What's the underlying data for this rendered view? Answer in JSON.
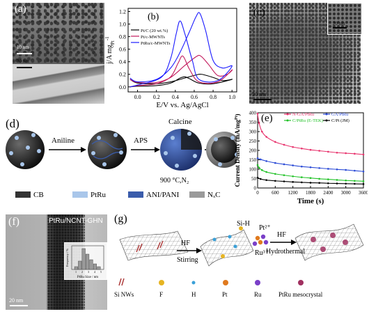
{
  "figure": {
    "panel_labels": [
      "(a)",
      "(b)",
      "(c)",
      "(d)",
      "(e)",
      "(f)",
      "(g)"
    ]
  },
  "panel_a": {
    "scale_top": "10 nm",
    "scale_bottom": "30 nm"
  },
  "panel_c": {
    "scale_main": "20 nm",
    "scale_inset": "20 nm"
  },
  "panel_d": {
    "steps": [
      "Aniline",
      "APS",
      "Calcine"
    ],
    "calcine_condition": "900 °C,N₂",
    "legend": [
      {
        "label": "CB",
        "color": "#333333"
      },
      {
        "label": "PtRu",
        "color": "#a9c6ea"
      },
      {
        "label": "ANI/PANI",
        "color": "#3a5cab"
      },
      {
        "label": "NₓC",
        "color": "#9a9a9a"
      }
    ]
  },
  "panel_f": {
    "title": "PtRu/NCNT-GHN",
    "scale": "20 nm",
    "inset_xlabel": "PtRu Size / nm",
    "inset_ylabel": "Frequency / %"
  },
  "panel_g": {
    "steps": [
      "HF",
      "Stirring",
      "Si-H",
      "Pt²⁺",
      "Ru³⁺",
      "HF",
      "Hydrothermal"
    ],
    "legend": [
      "Si NWs",
      "F",
      "H",
      "Pt",
      "Ru",
      "PtRu mesocrystal"
    ]
  },
  "chart_data": [
    {
      "type": "line",
      "panel": "(b)",
      "xlabel": "E/V vs. Ag/AgCl",
      "ylabel": "j/A mg",
      "ylabel_sub": "Pt",
      "ylabel_sup": "-1",
      "xlim": [
        -0.1,
        1.05
      ],
      "ylim": [
        -0.08,
        1.25
      ],
      "xticks": [
        0.0,
        0.2,
        0.4,
        0.6,
        0.8,
        1.0
      ],
      "yticks": [
        0.0,
        0.2,
        0.4,
        0.6,
        0.8,
        1.0,
        1.2
      ],
      "legend_position": "top-left",
      "series": [
        {
          "name": "Pt/C (20 wt.%)",
          "color": "#000000",
          "forward": [
            [
              -0.08,
              0.12
            ],
            [
              0.0,
              0.06
            ],
            [
              0.2,
              0.05
            ],
            [
              0.35,
              0.08
            ],
            [
              0.5,
              0.14
            ],
            [
              0.62,
              0.19
            ],
            [
              0.68,
              0.2
            ],
            [
              0.8,
              0.15
            ],
            [
              0.9,
              0.1
            ],
            [
              1.0,
              0.12
            ]
          ],
          "reverse": [
            [
              1.0,
              0.12
            ],
            [
              0.8,
              0.05
            ],
            [
              0.65,
              0.06
            ],
            [
              0.55,
              0.13
            ],
            [
              0.5,
              0.16
            ],
            [
              0.45,
              0.14
            ],
            [
              0.35,
              0.06
            ],
            [
              0.2,
              0.02
            ],
            [
              0.0,
              0.01
            ],
            [
              -0.08,
              0.0
            ]
          ]
        },
        {
          "name": "Pt/c-MWNTs",
          "color": "#c2185b",
          "forward": [
            [
              -0.08,
              0.12
            ],
            [
              0.0,
              0.07
            ],
            [
              0.2,
              0.07
            ],
            [
              0.35,
              0.15
            ],
            [
              0.5,
              0.34
            ],
            [
              0.62,
              0.48
            ],
            [
              0.67,
              0.49
            ],
            [
              0.75,
              0.36
            ],
            [
              0.85,
              0.18
            ],
            [
              0.95,
              0.2
            ],
            [
              1.0,
              0.27
            ]
          ],
          "reverse": [
            [
              1.0,
              0.27
            ],
            [
              0.85,
              0.08
            ],
            [
              0.65,
              0.08
            ],
            [
              0.55,
              0.28
            ],
            [
              0.48,
              0.49
            ],
            [
              0.43,
              0.38
            ],
            [
              0.35,
              0.16
            ],
            [
              0.2,
              0.05
            ],
            [
              0.0,
              0.02
            ],
            [
              -0.08,
              0.0
            ]
          ]
        },
        {
          "name": "PtRu/c-MWNTs",
          "color": "#1a1aff",
          "forward": [
            [
              -0.08,
              0.14
            ],
            [
              0.0,
              0.08
            ],
            [
              0.2,
              0.12
            ],
            [
              0.35,
              0.3
            ],
            [
              0.45,
              0.55
            ],
            [
              0.55,
              0.88
            ],
            [
              0.62,
              1.12
            ],
            [
              0.66,
              1.17
            ],
            [
              0.72,
              0.9
            ],
            [
              0.8,
              0.42
            ],
            [
              0.9,
              0.3
            ],
            [
              1.0,
              0.33
            ]
          ],
          "reverse": [
            [
              1.0,
              0.33
            ],
            [
              0.85,
              0.1
            ],
            [
              0.65,
              0.12
            ],
            [
              0.58,
              0.42
            ],
            [
              0.5,
              0.85
            ],
            [
              0.45,
              1.05
            ],
            [
              0.41,
              0.85
            ],
            [
              0.35,
              0.45
            ],
            [
              0.25,
              0.15
            ],
            [
              0.0,
              0.03
            ],
            [
              -0.08,
              0.0
            ]
          ]
        }
      ]
    },
    {
      "type": "line",
      "panel": "(e)",
      "xlabel": "Time (s)",
      "ylabel": "Current Density (mA/mg",
      "ylabel_sup": "Pt",
      "ylabel_end": ")",
      "xlim": [
        0,
        3600
      ],
      "ylim": [
        0,
        400
      ],
      "xticks": [
        0,
        600,
        1200,
        1800,
        2400,
        3000,
        3600
      ],
      "yticks": [
        0,
        50,
        100,
        150,
        200,
        250,
        300,
        350,
        400
      ],
      "legend_position": "top",
      "series": [
        {
          "name": "N-GA/PtRu",
          "color": "#e8336d",
          "marker": "dot",
          "points": [
            [
              0,
              395
            ],
            [
              50,
              345
            ],
            [
              150,
              300
            ],
            [
              300,
              272
            ],
            [
              600,
              245
            ],
            [
              900,
              230
            ],
            [
              1200,
              218
            ],
            [
              1500,
              210
            ],
            [
              1800,
              203
            ],
            [
              2100,
              198
            ],
            [
              2400,
              193
            ],
            [
              2700,
              188
            ],
            [
              3000,
              185
            ],
            [
              3300,
              182
            ],
            [
              3600,
              178
            ]
          ]
        },
        {
          "name": "GA/PtRu",
          "color": "#2b4bd6",
          "marker": "dot",
          "points": [
            [
              0,
              158
            ],
            [
              100,
              152
            ],
            [
              300,
              143
            ],
            [
              600,
              133
            ],
            [
              900,
              126
            ],
            [
              1200,
              120
            ],
            [
              1500,
              114
            ],
            [
              1800,
              110
            ],
            [
              2100,
              106
            ],
            [
              2400,
              102
            ],
            [
              2700,
              99
            ],
            [
              3000,
              96
            ],
            [
              3300,
              92
            ],
            [
              3600,
              88
            ]
          ]
        },
        {
          "name": "C/PtRu (E-TEK)",
          "color": "#22c228",
          "marker": "dot",
          "points": [
            [
              0,
              122
            ],
            [
              50,
              108
            ],
            [
              150,
              95
            ],
            [
              300,
              85
            ],
            [
              600,
              75
            ],
            [
              900,
              68
            ],
            [
              1200,
              62
            ],
            [
              1500,
              57
            ],
            [
              1800,
              53
            ],
            [
              2100,
              49
            ],
            [
              2400,
              46
            ],
            [
              2700,
              43
            ],
            [
              3000,
              40
            ],
            [
              3300,
              38
            ],
            [
              3600,
              36
            ]
          ]
        },
        {
          "name": "C/Pt (JM)",
          "color": "#000000",
          "marker": "dot",
          "points": [
            [
              0,
              55
            ],
            [
              100,
              48
            ],
            [
              300,
              42
            ],
            [
              600,
              38
            ],
            [
              900,
              35
            ],
            [
              1200,
              32
            ],
            [
              1500,
              30
            ],
            [
              1800,
              28
            ],
            [
              2100,
              27
            ],
            [
              2400,
              25
            ],
            [
              2700,
              24
            ],
            [
              3000,
              23
            ],
            [
              3300,
              22
            ],
            [
              3600,
              21
            ]
          ]
        }
      ]
    },
    {
      "type": "bar",
      "panel": "(f) inset",
      "xlabel": "PtRu Size / nm",
      "ylabel": "Frequency / %",
      "xticks": [
        1,
        2,
        3,
        4,
        5
      ],
      "values": [
        4,
        12,
        30,
        22,
        14,
        8,
        4
      ]
    }
  ]
}
